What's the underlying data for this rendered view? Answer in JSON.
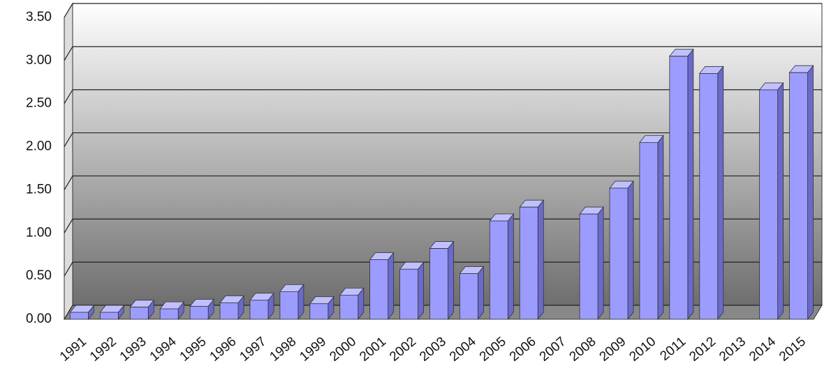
{
  "chart_data": {
    "type": "bar",
    "categories": [
      "1991",
      "1992",
      "1993",
      "1994",
      "1995",
      "1996",
      "1997",
      "1998",
      "1999",
      "2000",
      "2001",
      "2002",
      "2003",
      "2004",
      "2005",
      "2006",
      "2007",
      "2008",
      "2009",
      "2010",
      "2011",
      "2012",
      "2013",
      "2014",
      "2015"
    ],
    "values": [
      0.08,
      0.08,
      0.14,
      0.12,
      0.15,
      0.19,
      0.22,
      0.32,
      0.18,
      0.28,
      0.69,
      0.58,
      0.82,
      0.53,
      1.14,
      1.3,
      null,
      1.22,
      1.52,
      2.05,
      3.05,
      2.85,
      null,
      2.66,
      2.86
    ],
    "color": "#9c9cff",
    "ylim": [
      0,
      3.5
    ],
    "yticks": [
      {
        "value": 0,
        "label": "0.00"
      },
      {
        "value": 0.5,
        "label": "0.50"
      },
      {
        "value": 1,
        "label": "1.00"
      },
      {
        "value": 1.5,
        "label": "1.50"
      },
      {
        "value": 2,
        "label": "2.00"
      },
      {
        "value": 2.5,
        "label": "2.50"
      },
      {
        "value": 3,
        "label": "3.00"
      },
      {
        "value": 3.5,
        "label": "3.50"
      }
    ],
    "grid": true
  }
}
